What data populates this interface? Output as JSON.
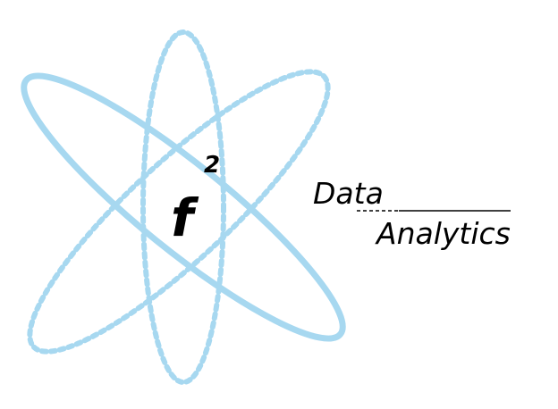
{
  "logo": {
    "symbol": "f",
    "exponent": "2",
    "wordmark_line1": "Data",
    "wordmark_line2": "Analytics",
    "orbit_color": "#a7d8f0",
    "text_color": "#000000"
  }
}
